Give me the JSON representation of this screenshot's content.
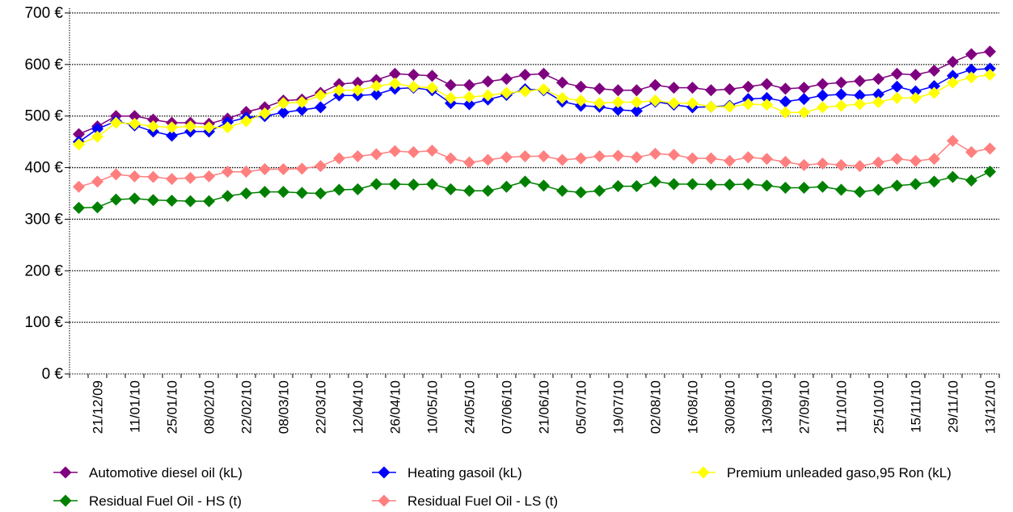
{
  "chart_data": {
    "type": "line",
    "title": "",
    "xlabel": "",
    "ylabel": "",
    "ylim": [
      0,
      700
    ],
    "y_ticks": [
      "0 €",
      "100 €",
      "200 €",
      "300 €",
      "400 €",
      "500 €",
      "600 €",
      "700 €"
    ],
    "x_tick_labels": [
      "21/12/09",
      "11/01/10",
      "25/01/10",
      "08/02/10",
      "22/02/10",
      "08/03/10",
      "22/03/10",
      "12/04/10",
      "26/04/10",
      "10/05/10",
      "24/05/10",
      "07/06/10",
      "21/06/10",
      "05/07/10",
      "19/07/10",
      "02/08/10",
      "16/08/10",
      "30/08/10",
      "13/09/10",
      "27/09/10",
      "11/10/10",
      "25/10/10",
      "15/11/10",
      "29/11/10",
      "13/12/10"
    ],
    "x_tick_positions": [
      1,
      3,
      5,
      7,
      9,
      11,
      13,
      15,
      17,
      19,
      21,
      23,
      25,
      27,
      29,
      31,
      33,
      35,
      37,
      39,
      41,
      43,
      45,
      47,
      49
    ],
    "grid": "horizontal dotted",
    "legend_position": "bottom",
    "series": [
      {
        "name": "Automotive diesel oil (kL)",
        "color": "#7f007f",
        "values": [
          465,
          480,
          500,
          500,
          493,
          487,
          487,
          485,
          495,
          508,
          517,
          530,
          532,
          545,
          562,
          565,
          570,
          582,
          580,
          578,
          560,
          560,
          567,
          572,
          580,
          582,
          565,
          557,
          553,
          550,
          550,
          560,
          555,
          555,
          550,
          552,
          557,
          562,
          553,
          555,
          562,
          565,
          568,
          572,
          582,
          580,
          588,
          605,
          620,
          625
        ]
      },
      {
        "name": "Heating gasoil (kL)",
        "color": "#0000ff",
        "values": [
          450,
          475,
          490,
          482,
          470,
          462,
          470,
          470,
          488,
          497,
          500,
          507,
          512,
          517,
          540,
          540,
          542,
          553,
          555,
          550,
          525,
          523,
          532,
          541,
          552,
          550,
          528,
          520,
          518,
          512,
          510,
          528,
          522,
          517,
          518,
          520,
          533,
          535,
          528,
          533,
          540,
          542,
          540,
          542,
          557,
          548,
          558,
          578,
          590,
          592
        ]
      },
      {
        "name": "Premium unleaded gaso,95 Ron (kL)",
        "color": "#ffff00",
        "values": [
          445,
          460,
          487,
          485,
          480,
          478,
          480,
          478,
          478,
          490,
          505,
          525,
          527,
          540,
          550,
          550,
          558,
          563,
          557,
          555,
          535,
          537,
          540,
          545,
          548,
          552,
          535,
          530,
          525,
          527,
          527,
          530,
          525,
          525,
          518,
          518,
          523,
          522,
          507,
          507,
          517,
          520,
          523,
          527,
          535,
          535,
          545,
          565,
          575,
          580
        ]
      },
      {
        "name": "Residual Fuel Oil - HS (t)",
        "color": "#008000",
        "values": [
          322,
          323,
          338,
          340,
          337,
          336,
          335,
          335,
          345,
          350,
          353,
          353,
          351,
          350,
          357,
          358,
          368,
          368,
          367,
          368,
          358,
          355,
          355,
          363,
          373,
          365,
          355,
          352,
          355,
          364,
          364,
          373,
          368,
          368,
          367,
          367,
          368,
          365,
          361,
          361,
          363,
          357,
          353,
          357,
          365,
          368,
          373,
          382,
          375,
          392
        ]
      },
      {
        "name": "Residual Fuel Oil - LS (t)",
        "color": "#ff7f7f",
        "values": [
          363,
          373,
          387,
          383,
          382,
          378,
          380,
          383,
          392,
          392,
          397,
          397,
          398,
          403,
          418,
          422,
          426,
          432,
          430,
          433,
          418,
          410,
          415,
          420,
          422,
          422,
          415,
          418,
          422,
          423,
          420,
          427,
          425,
          418,
          418,
          413,
          420,
          417,
          411,
          405,
          408,
          405,
          403,
          410,
          417,
          413,
          417,
          452,
          430,
          437
        ]
      }
    ]
  }
}
